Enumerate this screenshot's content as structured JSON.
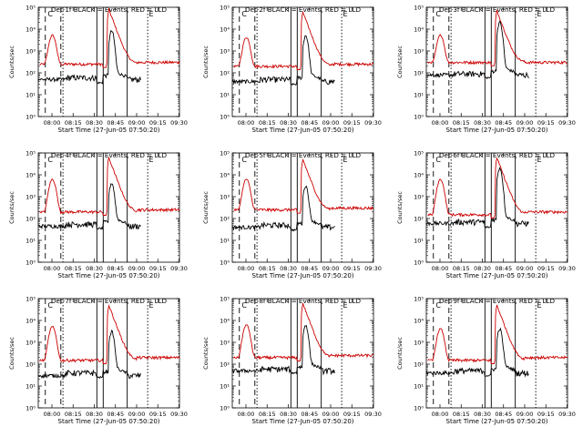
{
  "colors": {
    "background": "#ffffff",
    "events": "#000000",
    "lld": "#cc0000",
    "axis": "#000000"
  },
  "chart_data": {
    "type": "line",
    "ylabel": "Counts/sec",
    "xlabel": "Start Time (27-Jun-05 07:50:20)",
    "x_units": "minutes since 07:50:20",
    "xlim": [
      0,
      100
    ],
    "x_tick_labels": [
      "08:00",
      "08:15",
      "08:30",
      "08:45",
      "09:00",
      "09:15",
      "09:30"
    ],
    "x_tick_values": [
      9.67,
      24.67,
      39.67,
      54.67,
      69.67,
      84.67,
      99.67
    ],
    "y_scale": "log",
    "ylim": [
      1,
      100000
    ],
    "y_tick_labels": [
      "10⁰",
      "10¹",
      "10²",
      "10³",
      "10⁴",
      "10⁵"
    ],
    "y_tick_values": [
      1,
      10,
      100,
      1000,
      10000,
      100000
    ],
    "legend_letter": "C",
    "panels": [
      {
        "title": "Det-1f BLACK = Events, RED = LLD",
        "events": {
          "base": 50,
          "pre": 60,
          "gap_level": 35,
          "peak": 8000
        },
        "lld": {
          "base": 250,
          "peak": 5000,
          "tail": 300,
          "peak2": 80000
        }
      },
      {
        "title": "Det-2f BLACK = Events, RED = LLD",
        "events": {
          "base": 40,
          "pre": 50,
          "gap_level": 30,
          "peak": 5000
        },
        "lld": {
          "base": 200,
          "peak": 4000,
          "tail": 250,
          "peak2": 60000
        }
      },
      {
        "title": "Det-3f BLACK = Events, RED = LLD",
        "events": {
          "base": 80,
          "pre": 90,
          "gap_level": 60,
          "peak": 20000
        },
        "lld": {
          "base": 300,
          "peak": 5000,
          "tail": 300,
          "peak2": 70000
        }
      },
      {
        "title": "Det-4f BLACK = Events, RED = LLD",
        "events": {
          "base": 45,
          "pre": 55,
          "gap_level": 35,
          "peak": 4000
        },
        "lld": {
          "base": 200,
          "peak": 6000,
          "tail": 250,
          "peak2": 60000
        }
      },
      {
        "title": "Det-5f BLACK = Events, RED = LLD",
        "events": {
          "base": 40,
          "pre": 50,
          "gap_level": 30,
          "peak": 3000
        },
        "lld": {
          "base": 250,
          "peak": 6000,
          "tail": 300,
          "peak2": 50000
        }
      },
      {
        "title": "Det-6f BLACK = Events, RED = LLD",
        "events": {
          "base": 60,
          "pre": 70,
          "gap_level": 40,
          "peak": 20000
        },
        "lld": {
          "base": 150,
          "peak": 6000,
          "tail": 200,
          "peak2": 60000
        }
      },
      {
        "title": "Det-7f BLACK = Events, RED = LLD",
        "events": {
          "base": 30,
          "pre": 40,
          "gap_level": 25,
          "peak": 3000
        },
        "lld": {
          "base": 150,
          "peak": 5000,
          "tail": 200,
          "peak2": 50000
        }
      },
      {
        "title": "Det-8f BLACK = Events, RED = LLD",
        "events": {
          "base": 50,
          "pre": 60,
          "gap_level": 40,
          "peak": 6000
        },
        "lld": {
          "base": 200,
          "peak": 6000,
          "tail": 250,
          "peak2": 60000
        }
      },
      {
        "title": "Det-9f BLACK = Events, RED = LLD",
        "events": {
          "base": 40,
          "pre": 50,
          "gap_level": 30,
          "peak": 4000
        },
        "lld": {
          "base": 150,
          "peak": 4000,
          "tail": 200,
          "peak2": 50000
        }
      }
    ],
    "markers_minutes": {
      "dashed_1": 5.0,
      "dashed_2": 16.0,
      "dotted_1": 17.5,
      "solid_1": 41.5,
      "solid_2": 46.0,
      "solid_3": 63.0,
      "dotted_2": 77.5
    }
  }
}
